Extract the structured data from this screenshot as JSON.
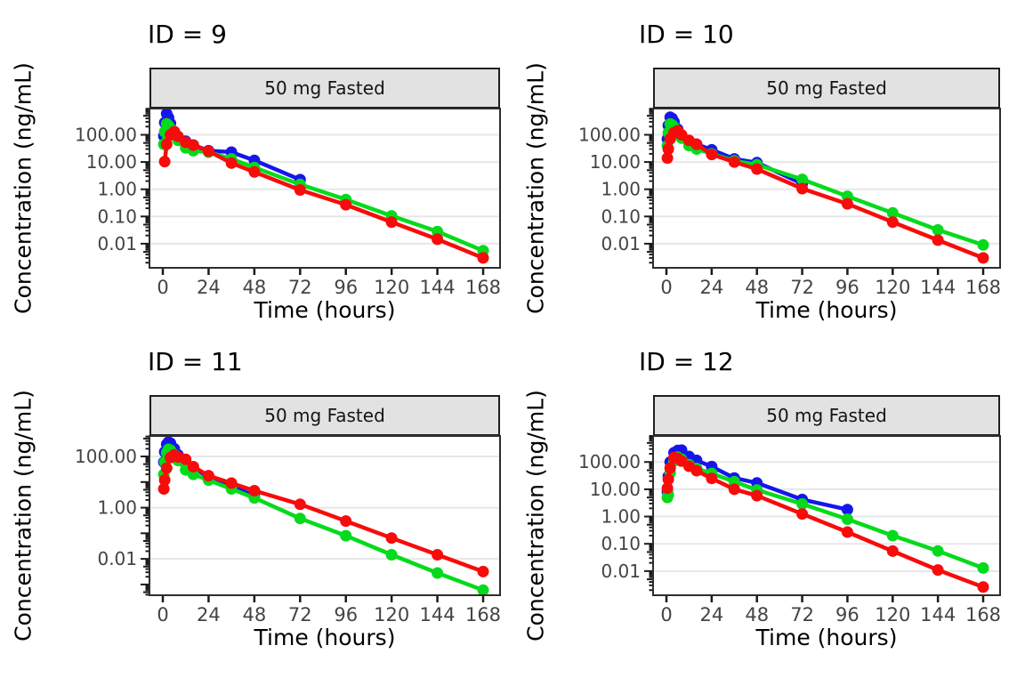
{
  "figure": {
    "y_axis_title": "Concentration (ng/mL)",
    "x_axis_title": "Time (hours)",
    "facet_label": "50 mg Fasted",
    "series_colors": {
      "blue": "#1616ec",
      "green": "#06da1c",
      "red": "#f80b0b"
    },
    "panel_border_color": "#2e2e2e",
    "strip_bg_color": "#e2e2e2",
    "gridline_color": "#e7e7e7",
    "tick_label_color": "#444444"
  },
  "chart_data": [
    {
      "type": "line",
      "title": "ID = 9",
      "facet_label": "50 mg Fasted",
      "xlabel": "Time (hours)",
      "ylabel": "Concentration (ng/mL)",
      "x_ticks": [
        0,
        24,
        48,
        72,
        96,
        120,
        144,
        168
      ],
      "xlim": [
        -7,
        177
      ],
      "y_scale": "log10",
      "ylim": [
        0.0013,
        920
      ],
      "y_tick_values": [
        100,
        10,
        1,
        0.1,
        0.01
      ],
      "y_tick_labels": [
        "100.00",
        "10.00",
        "1.00",
        "0.10",
        "0.01"
      ],
      "grid": "horizontal-major",
      "legend": "none",
      "series": [
        {
          "name": "blue",
          "color": "#1616ec",
          "x": [
            0.5,
            1,
            2,
            3,
            4,
            6,
            8,
            12,
            16,
            24,
            36,
            48,
            72
          ],
          "y": [
            90,
            280,
            600,
            430,
            260,
            130,
            80,
            58,
            42,
            26,
            23,
            11.5,
            2.25
          ]
        },
        {
          "name": "green",
          "color": "#06da1c",
          "x": [
            0.5,
            1,
            2,
            3,
            4,
            6,
            8,
            12,
            16,
            24,
            36,
            48,
            72,
            96,
            120,
            144,
            168
          ],
          "y": [
            45,
            130,
            255,
            215,
            170,
            95,
            62,
            33,
            26,
            23,
            13,
            6.3,
            1.5,
            0.42,
            0.105,
            0.028,
            0.0055
          ]
        },
        {
          "name": "red",
          "color": "#f80b0b",
          "x": [
            1,
            2,
            4,
            6,
            8,
            12,
            16,
            24,
            36,
            48,
            72,
            96,
            120,
            144,
            168
          ],
          "y": [
            10.4,
            45,
            100,
            130,
            88,
            53,
            41,
            25,
            9.1,
            4.3,
            0.94,
            0.27,
            0.062,
            0.0145,
            0.003
          ]
        }
      ]
    },
    {
      "type": "line",
      "title": "ID = 10",
      "facet_label": "50 mg Fasted",
      "xlabel": "Time (hours)",
      "ylabel": "Concentration (ng/mL)",
      "x_ticks": [
        0,
        24,
        48,
        72,
        96,
        120,
        144,
        168
      ],
      "xlim": [
        -7,
        177
      ],
      "y_scale": "log10",
      "ylim": [
        0.0013,
        920
      ],
      "y_tick_values": [
        100,
        10,
        1,
        0.1,
        0.01
      ],
      "y_tick_labels": [
        "100.00",
        "10.00",
        "1.00",
        "0.10",
        "0.01"
      ],
      "grid": "horizontal-major",
      "legend": "none",
      "series": [
        {
          "name": "blue",
          "color": "#1616ec",
          "x": [
            0.5,
            1,
            2,
            3,
            4,
            6,
            8,
            12,
            16,
            24,
            36,
            48,
            72
          ],
          "y": [
            70,
            220,
            440,
            400,
            300,
            160,
            95,
            60,
            45,
            28,
            13,
            9.5,
            1.6
          ]
        },
        {
          "name": "green",
          "color": "#06da1c",
          "x": [
            0.5,
            1,
            2,
            3,
            4,
            6,
            8,
            12,
            16,
            24,
            36,
            48,
            72,
            96,
            120,
            144,
            168
          ],
          "y": [
            40,
            120,
            250,
            230,
            190,
            120,
            75,
            40,
            30,
            20,
            11,
            8,
            2.3,
            0.55,
            0.135,
            0.032,
            0.009
          ]
        },
        {
          "name": "red",
          "color": "#f80b0b",
          "x": [
            0.5,
            1,
            2,
            4,
            6,
            8,
            12,
            16,
            24,
            36,
            48,
            72,
            96,
            120,
            144,
            168
          ],
          "y": [
            14,
            30,
            70,
            120,
            140,
            100,
            62,
            45,
            19,
            10,
            5.5,
            1.05,
            0.29,
            0.062,
            0.0135,
            0.003
          ]
        }
      ]
    },
    {
      "type": "line",
      "title": "ID = 11",
      "facet_label": "50 mg Fasted",
      "xlabel": "Time (hours)",
      "ylabel": "Concentration (ng/mL)",
      "x_ticks": [
        0,
        24,
        48,
        72,
        96,
        120,
        144,
        168
      ],
      "xlim": [
        -7,
        177
      ],
      "y_scale": "log10",
      "ylim": [
        0.00038,
        630
      ],
      "y_tick_values": [
        100,
        1,
        0.01
      ],
      "y_tick_labels": [
        "100.00",
        "1.00",
        "0.01"
      ],
      "grid": "horizontal-major",
      "legend": "none",
      "series": [
        {
          "name": "blue",
          "color": "#1616ec",
          "x": [
            0.5,
            1,
            2,
            3,
            4,
            6,
            8,
            12,
            16,
            24,
            36,
            48
          ],
          "y": [
            60,
            150,
            300,
            370,
            330,
            200,
            115,
            60,
            35,
            16,
            7,
            2.9
          ]
        },
        {
          "name": "green",
          "color": "#06da1c",
          "x": [
            0.5,
            1,
            2,
            3,
            4,
            6,
            8,
            12,
            16,
            24,
            36,
            48,
            72,
            96,
            120,
            144,
            168
          ],
          "y": [
            20,
            60,
            140,
            190,
            175,
            120,
            70,
            30,
            20,
            11.9,
            5.4,
            2.4,
            0.38,
            0.08,
            0.0145,
            0.0028,
            0.0006
          ]
        },
        {
          "name": "red",
          "color": "#f80b0b",
          "x": [
            0.5,
            1,
            2,
            4,
            6,
            8,
            12,
            16,
            24,
            36,
            48,
            72,
            96,
            120,
            144,
            168
          ],
          "y": [
            5.4,
            12,
            35,
            90,
            115,
            95,
            77,
            40,
            17.8,
            9.1,
            4.6,
            1.35,
            0.3,
            0.065,
            0.0145,
            0.0032
          ]
        }
      ]
    },
    {
      "type": "line",
      "title": "ID = 12",
      "facet_label": "50 mg Fasted",
      "xlabel": "Time (hours)",
      "ylabel": "Concentration (ng/mL)",
      "x_ticks": [
        0,
        24,
        48,
        72,
        96,
        120,
        144,
        168
      ],
      "xlim": [
        -7,
        177
      ],
      "y_scale": "log10",
      "ylim": [
        0.0013,
        900
      ],
      "y_tick_values": [
        100,
        10,
        1,
        0.1,
        0.01
      ],
      "y_tick_labels": [
        "100.00",
        "10.00",
        "1.00",
        "0.10",
        "0.01"
      ],
      "grid": "horizontal-major",
      "legend": "none",
      "series": [
        {
          "name": "blue",
          "color": "#1616ec",
          "x": [
            0.5,
            1,
            2,
            4,
            6,
            8,
            12,
            16,
            24,
            36,
            48,
            72,
            96
          ],
          "y": [
            8,
            30,
            100,
            220,
            265,
            272,
            160,
            115,
            68,
            26,
            17,
            4.2,
            1.8
          ]
        },
        {
          "name": "green",
          "color": "#06da1c",
          "x": [
            0.5,
            1,
            2,
            4,
            6,
            8,
            12,
            16,
            24,
            36,
            48,
            72,
            96,
            120,
            144,
            168
          ],
          "y": [
            5,
            6.3,
            40,
            110,
            150,
            125,
            80,
            58,
            38,
            19,
            9.5,
            2.9,
            0.8,
            0.2,
            0.055,
            0.013
          ]
        },
        {
          "name": "red",
          "color": "#f80b0b",
          "x": [
            0.5,
            1,
            2,
            4,
            6,
            8,
            12,
            16,
            24,
            36,
            48,
            72,
            96,
            120,
            144,
            168
          ],
          "y": [
            11,
            23,
            60,
            145,
            135,
            108,
            70,
            48,
            25,
            10,
            5.8,
            1.25,
            0.27,
            0.054,
            0.011,
            0.0026
          ]
        }
      ]
    }
  ]
}
